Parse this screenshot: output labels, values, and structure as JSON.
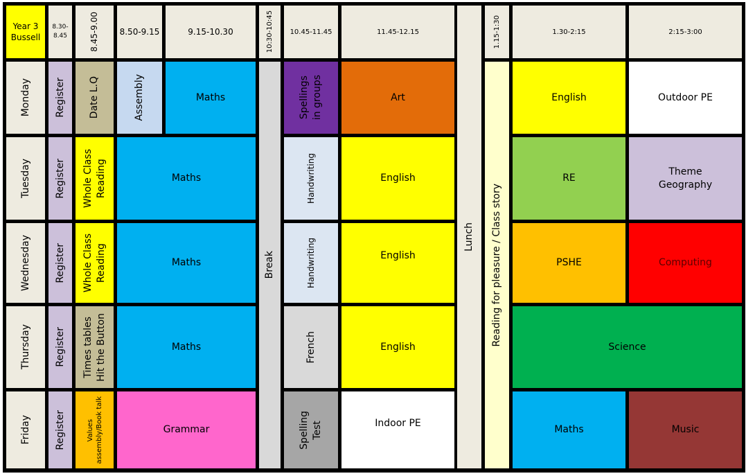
{
  "header": {
    "class_label": "Year 3\nBussell",
    "times": [
      "8.30-\n8.45",
      "8.45-9.00",
      "8.50-9.15",
      "9.15-10.30",
      "10:30-10:45",
      "10.45-11.45",
      "11.45-12.15",
      "1.15-1:30",
      "1.30-2:15",
      "2:15-3:00"
    ]
  },
  "spanning": {
    "break": "Break",
    "lunch": "Lunch",
    "reading": "Reading for pleasure / Class story"
  },
  "days": [
    {
      "day": "Monday",
      "register": "Register",
      "early": "Date L.Q",
      "assembly": "Assembly",
      "morning": "Maths",
      "mid": "Spellings\nin groups",
      "late": "Art",
      "pm1": "English",
      "pm2": "Outdoor PE"
    },
    {
      "day": "Tuesday",
      "register": "Register",
      "early": "Whole Class\nReading",
      "morning": "Maths",
      "mid": "Handwriting",
      "late": "English",
      "pm1": "RE",
      "pm2": "Theme\nGeography"
    },
    {
      "day": "Wednesday",
      "register": "Register",
      "early": "Whole Class\nReading",
      "morning": "Maths",
      "mid": "Handwriting",
      "late": "English",
      "pm1": "PSHE",
      "pm2": "Computing"
    },
    {
      "day": "Thursday",
      "register": "Register",
      "early": "Times tables\nHit the Button",
      "morning": "Maths",
      "mid": "French",
      "late": "English",
      "pm": "Science"
    },
    {
      "day": "Friday",
      "register": "Register",
      "early": "Values\nassembly/Book talk",
      "morning": "Grammar",
      "mid": "Spelling\nTest",
      "late": "Indoor PE",
      "pm1": "Maths",
      "pm2": "Music"
    }
  ],
  "colors": {
    "header": "#EEEBE0",
    "class_label": "#FFFF00",
    "register": "#CCC0DA",
    "maths": "#00B0F0",
    "english": "#FFFF00",
    "break": "#D9D9D9",
    "lunch": "#EEEBE0",
    "reading": "#FFFFCC",
    "art": "#E36C09",
    "spellings": "#7030A0",
    "re": "#92D050",
    "theme": "#CCC0DA",
    "pshe": "#FFC000",
    "computing": "#FF0000",
    "science": "#00B050",
    "music": "#953735",
    "grammar": "#FF66CC",
    "handwriting": "#DCE6F2",
    "spelling_test": "#A6A6A6"
  }
}
